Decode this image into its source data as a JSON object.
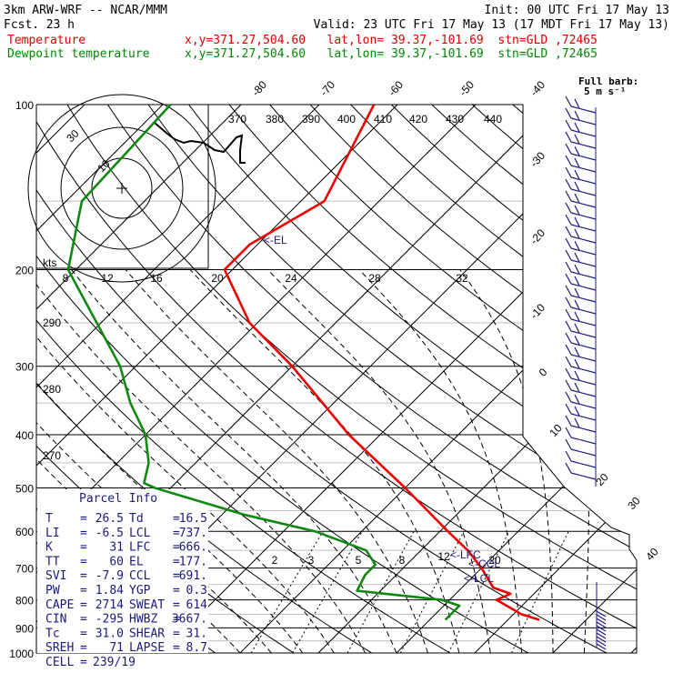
{
  "header": {
    "model": "3km ARW-WRF -- NCAR/MMM",
    "init": "Init: 00 UTC Fri 17 May 13",
    "fcst_label": "Fcst.",
    "fcst_value": "23 h",
    "valid": "Valid: 23 UTC Fri 17 May 13 (17 MDT Fri 17 May 13)",
    "temp_label": "Temperature",
    "dewp_label": "Dewpoint temperature",
    "temp_loc": "x,y=371.27,504.60   lat,lon= 39.37,-101.69  stn=GLD ,72465",
    "dewp_loc": "x,y=371.27,504.60   lat,lon= 39.37,-101.69  stn=GLD ,72465"
  },
  "colors": {
    "temperature": "#ee0000",
    "dewpoint": "#118811",
    "header_red": "#dd0000",
    "header_green": "#008800",
    "navy": "#1a1a80",
    "grid": "#000000"
  },
  "barb_legend": {
    "line1": "Full barb:",
    "line2": "5 m s⁻¹"
  },
  "hodograph": {
    "units": "kts",
    "speed_labels": [
      "8",
      "12",
      "16",
      "20",
      "24",
      "28",
      "32"
    ],
    "ring_labels": [
      "30",
      "10"
    ]
  },
  "theta_labels": [
    "370",
    "380",
    "390",
    "400",
    "410",
    "420",
    "430",
    "440"
  ],
  "wetbulb_labels": [
    "290",
    "280",
    "270"
  ],
  "mixing_labels": [
    "2",
    "3",
    "5",
    "8",
    "12",
    "20"
  ],
  "level_markers": {
    "el": "<-EL",
    "lfc": "<-LFC",
    "ccl": "<-CCL",
    "lcl": "<-LCL"
  },
  "parcel": {
    "title": "Parcel Info",
    "rows": [
      {
        "l1": "T",
        "v1": "26.5",
        "l2": "Td",
        "v2": "16.5"
      },
      {
        "l1": "LI",
        "v1": "-6.5",
        "l2": "LCL",
        "v2": "737."
      },
      {
        "l1": "K",
        "v1": "31",
        "l2": "LFC",
        "v2": "666."
      },
      {
        "l1": "TT",
        "v1": "60",
        "l2": "EL",
        "v2": "177."
      },
      {
        "l1": "SVI",
        "v1": "-7.9",
        "l2": "CCL",
        "v2": "691."
      },
      {
        "l1": "PW",
        "v1": "1.84",
        "l2": "YGP",
        "v2": "0.3"
      },
      {
        "l1": "CAPE",
        "v1": "2714",
        "l2": "SWEAT",
        "v2": "614"
      },
      {
        "l1": "CIN",
        "v1": "-295",
        "l2": "HWBZ",
        "v2": "3667."
      },
      {
        "l1": "Tc",
        "v1": "31.0",
        "l2": "SHEAR",
        "v2": "31."
      },
      {
        "l1": "SREH",
        "v1": "71",
        "l2": "LAPSE",
        "v2": "8.7"
      }
    ],
    "cell_label": "CELL",
    "cell_value": "239/19"
  },
  "chart_data": {
    "type": "line",
    "skewt": true,
    "y_scale": "log",
    "yunits": "hPa",
    "ylim": [
      1000,
      100
    ],
    "pressure_ticks": [
      100,
      200,
      300,
      400,
      500,
      600,
      700,
      800,
      900,
      1000
    ],
    "isotherm_labels": [
      -80,
      -70,
      -60,
      -50,
      -40,
      -30,
      -20,
      -10,
      0,
      10,
      20,
      30,
      40
    ],
    "series": [
      {
        "name": "Temperature",
        "points": [
          {
            "p": 100,
            "t": -63
          },
          {
            "p": 150,
            "t": -57
          },
          {
            "p": 180,
            "t": -61
          },
          {
            "p": 200,
            "t": -61
          },
          {
            "p": 250,
            "t": -51
          },
          {
            "p": 300,
            "t": -40
          },
          {
            "p": 400,
            "t": -24
          },
          {
            "p": 500,
            "t": -10
          },
          {
            "p": 600,
            "t": 1
          },
          {
            "p": 650,
            "t": 6
          },
          {
            "p": 700,
            "t": 10
          },
          {
            "p": 760,
            "t": 14
          },
          {
            "p": 780,
            "t": 17
          },
          {
            "p": 800,
            "t": 16
          },
          {
            "p": 850,
            "t": 21
          },
          {
            "p": 870,
            "t": 24
          }
        ]
      },
      {
        "name": "Dewpoint temperature",
        "points": [
          {
            "p": 100,
            "t": -89
          },
          {
            "p": 150,
            "t": -88
          },
          {
            "p": 200,
            "t": -81
          },
          {
            "p": 300,
            "t": -62
          },
          {
            "p": 350,
            "t": -56
          },
          {
            "p": 400,
            "t": -50
          },
          {
            "p": 450,
            "t": -46
          },
          {
            "p": 490,
            "t": -44
          },
          {
            "p": 500,
            "t": -42
          },
          {
            "p": 560,
            "t": -27
          },
          {
            "p": 600,
            "t": -16
          },
          {
            "p": 650,
            "t": -7
          },
          {
            "p": 690,
            "t": -4
          },
          {
            "p": 720,
            "t": -4
          },
          {
            "p": 770,
            "t": -3
          },
          {
            "p": 800,
            "t": 9
          },
          {
            "p": 820,
            "t": 12
          },
          {
            "p": 870,
            "t": 12
          }
        ]
      }
    ],
    "hodograph_path": [
      [
        -17,
        -36
      ],
      [
        -10,
        -30
      ],
      [
        -6,
        -27
      ],
      [
        -1,
        -25
      ],
      [
        3,
        -26
      ],
      [
        10,
        -25
      ],
      [
        16,
        -21
      ],
      [
        21,
        -20
      ],
      [
        28,
        -28
      ],
      [
        31,
        -29
      ],
      [
        30,
        -21
      ],
      [
        30,
        -14
      ],
      [
        33,
        -14
      ]
    ]
  }
}
